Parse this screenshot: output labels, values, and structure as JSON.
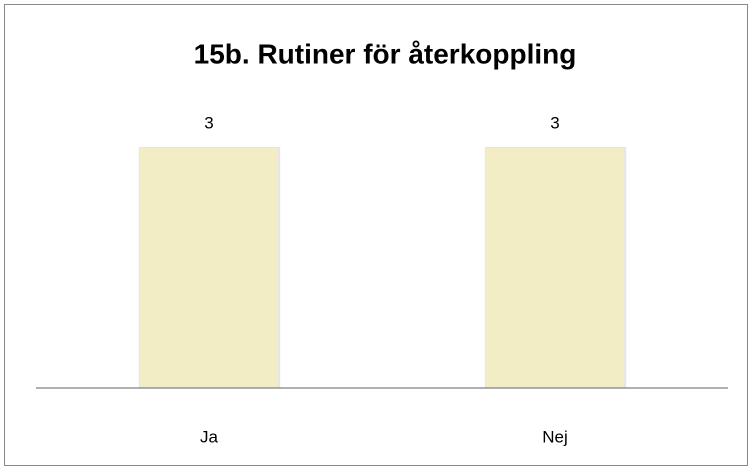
{
  "chart_data": {
    "type": "bar",
    "title": "15b. Rutiner för återkoppling",
    "categories": [
      "Ja",
      "Nej"
    ],
    "values": [
      3,
      3
    ],
    "color": "#f2edc4",
    "ylim": [
      0,
      3
    ]
  }
}
